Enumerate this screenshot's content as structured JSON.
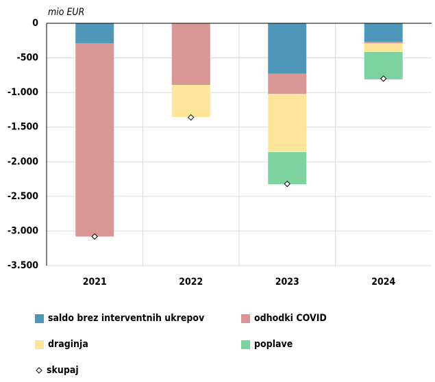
{
  "chart_data": {
    "type": "stacked_bar",
    "y_label": "mio EUR",
    "categories": [
      "2021",
      "2022",
      "2023",
      "2024"
    ],
    "series": [
      {
        "name": "saldo brez interventnih ukrepov",
        "color": "#4f97b8",
        "values": [
          -290,
          0,
          -730,
          -270
        ]
      },
      {
        "name": "odhodki COVID",
        "color": "#d99694",
        "values": [
          -2790,
          -890,
          -290,
          -20
        ]
      },
      {
        "name": "draginja",
        "color": "#fde69a",
        "values": [
          0,
          -465,
          -840,
          -125
        ]
      },
      {
        "name": "poplave",
        "color": "#7dd3a0",
        "values": [
          0,
          0,
          -465,
          -395
        ]
      }
    ],
    "total": {
      "name": "skupaj",
      "values": [
        -3080,
        -1360,
        -2320,
        -800
      ]
    },
    "ylim": [
      -3500,
      0
    ],
    "yticks": [
      0,
      -500,
      {
        "value": -1000,
        "label": "-1.000"
      },
      {
        "value": -1500,
        "label": "-1.500"
      },
      {
        "value": -2000,
        "label": "-2.000"
      },
      {
        "value": -2500,
        "label": "-2.500"
      },
      {
        "value": -3000,
        "label": "-3.000"
      },
      {
        "value": -3500,
        "label": "-3.500"
      }
    ],
    "grid": true
  }
}
